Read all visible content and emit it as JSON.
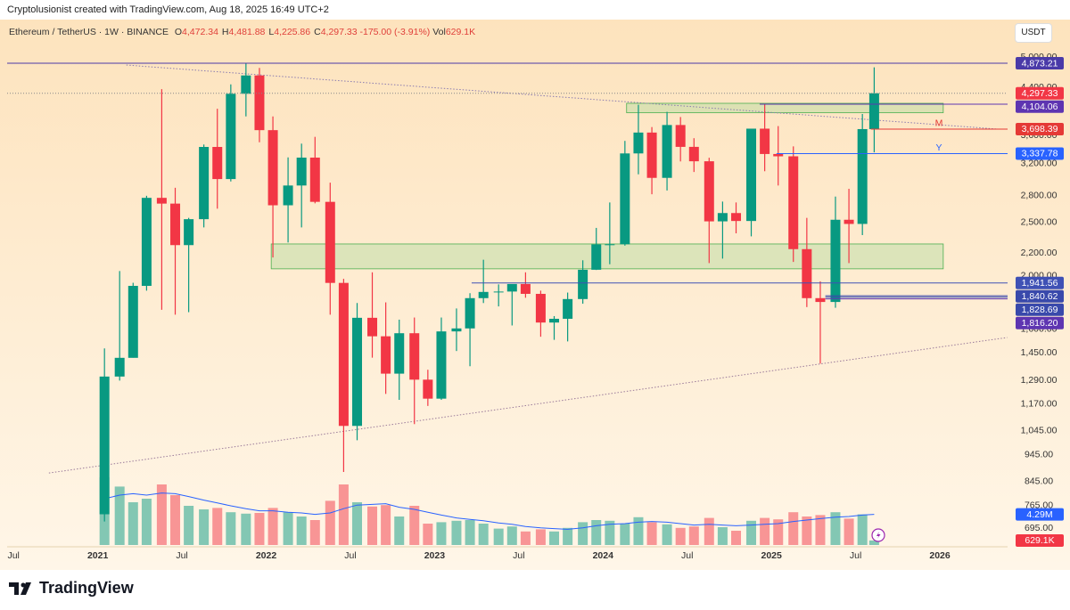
{
  "header": {
    "credit": "Cryptolusionist created with TradingView.com, Aug 18, 2025 16:49 UTC+2",
    "symbol": "Ethereum / TetherUS · 1W · BINANCE",
    "ohlc": [
      {
        "key": "O",
        "value": "4,472.34"
      },
      {
        "key": "H",
        "value": "4,481.88"
      },
      {
        "key": "L",
        "value": "4,225.86"
      },
      {
        "key": "C",
        "value": "4,297.33"
      }
    ],
    "change": "-175.00 (-3.91%)",
    "vol_key": "Vol",
    "vol_value": "629.1K",
    "currency": "USDT"
  },
  "chart_data": {
    "type": "candlestick",
    "log_scale": true,
    "grid": false,
    "up_color": "#089981",
    "down_color": "#f23645",
    "x": [
      2021.04,
      2021.13,
      2021.21,
      2021.29,
      2021.38,
      2021.46,
      2021.54,
      2021.63,
      2021.71,
      2021.79,
      2021.88,
      2021.96,
      2022.04,
      2022.13,
      2022.21,
      2022.29,
      2022.38,
      2022.46,
      2022.54,
      2022.63,
      2022.71,
      2022.79,
      2022.88,
      2022.96,
      2023.04,
      2023.13,
      2023.21,
      2023.29,
      2023.38,
      2023.46,
      2023.54,
      2023.63,
      2023.71,
      2023.79,
      2023.88,
      2023.96,
      2024.04,
      2024.13,
      2024.21,
      2024.29,
      2024.38,
      2024.46,
      2024.54,
      2024.63,
      2024.71,
      2024.79,
      2024.88,
      2024.96,
      2025.04,
      2025.13,
      2025.21,
      2025.29,
      2025.38,
      2025.46,
      2025.54,
      2025.61
    ],
    "open": [
      737,
      1312,
      1419,
      1918,
      2773,
      2707,
      2275,
      2536,
      3432,
      3000,
      4288,
      4630,
      3682,
      2688,
      2920,
      3282,
      2727,
      1942,
      1067,
      1678,
      1553,
      1328,
      1573,
      1295,
      1196,
      1585,
      1605,
      1822,
      1870,
      1873,
      1933,
      1855,
      1645,
      1671,
      1815,
      2052,
      2282,
      2283,
      3340,
      3645,
      3015,
      3762,
      3433,
      3232,
      2513,
      2602,
      2517,
      3705,
      3332,
      3300,
      2237,
      1822,
      1793,
      2530,
      2486,
      3698
    ],
    "high": [
      1476,
      2041,
      1943,
      2797,
      4372,
      2892,
      2550,
      3467,
      4027,
      4460,
      4868,
      4778,
      3900,
      3285,
      3480,
      3580,
      2955,
      1975,
      1785,
      2030,
      1790,
      1665,
      1680,
      1350,
      1680,
      1745,
      1860,
      2140,
      1930,
      1930,
      2030,
      1880,
      1690,
      1865,
      2135,
      2445,
      2720,
      3520,
      4095,
      3730,
      3975,
      3890,
      3560,
      3280,
      2730,
      2720,
      3680,
      4107,
      3745,
      3440,
      2550,
      1955,
      2788,
      2880,
      3940,
      4790
    ],
    "low": [
      715,
      1290,
      1420,
      1880,
      1735,
      1700,
      1718,
      2450,
      2650,
      2970,
      3900,
      3500,
      2160,
      2300,
      2450,
      2710,
      1700,
      880,
      1005,
      1420,
      1220,
      1190,
      1075,
      1160,
      1190,
      1460,
      1370,
      1785,
      1760,
      1625,
      1825,
      1550,
      1530,
      1520,
      1780,
      2050,
      2100,
      2270,
      3060,
      2815,
      2860,
      3230,
      3090,
      2110,
      2150,
      2390,
      2360,
      3100,
      2920,
      2120,
      1755,
      1385,
      1750,
      2110,
      2373,
      3355
    ],
    "close": [
      1312,
      1419,
      1918,
      2773,
      2707,
      2275,
      2536,
      3432,
      3000,
      4288,
      4630,
      3682,
      2688,
      2920,
      3282,
      2727,
      1942,
      1067,
      1678,
      1553,
      1328,
      1573,
      1295,
      1196,
      1585,
      1605,
      1822,
      1870,
      1873,
      1933,
      1855,
      1645,
      1671,
      1815,
      2052,
      2282,
      2283,
      3340,
      3645,
      3015,
      3762,
      3433,
      3232,
      2513,
      2602,
      2517,
      3705,
      3332,
      3300,
      2237,
      1822,
      1793,
      2530,
      2486,
      3698,
      4297
    ],
    "volume": {
      "ylim": [
        0,
        14000000
      ],
      "ma_color": "#2962ff",
      "values": [
        9500000,
        8200000,
        6000000,
        6500000,
        8500000,
        7000000,
        5500000,
        5000000,
        5200000,
        4600000,
        4400000,
        4500000,
        5200000,
        4600000,
        4000000,
        3500000,
        6200000,
        8500000,
        6000000,
        5400000,
        5600000,
        4000000,
        5500000,
        3000000,
        3200000,
        3400000,
        3500000,
        3000000,
        2300000,
        2600000,
        1900000,
        2200000,
        1900000,
        2400000,
        3200000,
        3500000,
        3400000,
        3000000,
        3900000,
        3200000,
        2900000,
        2400000,
        2600000,
        3800000,
        2500000,
        2000000,
        3400000,
        3800000,
        3600000,
        4600000,
        4000000,
        4200000,
        4600000,
        3700000,
        4300000,
        629100
      ],
      "value_labels": [
        null,
        null,
        null,
        null,
        null,
        null,
        null,
        null,
        null,
        null,
        null,
        null,
        null,
        null,
        null,
        null,
        null,
        null,
        null,
        null,
        null,
        null,
        null,
        null,
        null,
        null,
        null,
        null,
        null,
        null,
        null,
        null,
        null,
        null,
        null,
        null,
        null,
        null,
        null,
        null,
        null,
        null,
        null,
        null,
        null,
        null,
        null,
        null,
        null,
        null,
        null,
        null,
        null,
        null,
        null,
        "629.1K"
      ],
      "ma": [
        6500000,
        7000000,
        7200000,
        7000000,
        7300000,
        7200000,
        6800000,
        6300000,
        5900000,
        5500000,
        5100000,
        4800000,
        4800000,
        4600000,
        4500000,
        4300000,
        4500000,
        5100000,
        5600000,
        5700000,
        5800000,
        5300000,
        5000000,
        4600000,
        4200000,
        3800000,
        3600000,
        3400000,
        3100000,
        2900000,
        2600000,
        2400000,
        2300000,
        2200000,
        2400000,
        2700000,
        2900000,
        3000000,
        3200000,
        3300000,
        3200000,
        3000000,
        2800000,
        2900000,
        2800000,
        2700000,
        2800000,
        2900000,
        3000000,
        3300000,
        3500000,
        3700000,
        3900000,
        4000000,
        4200000,
        4290000
      ],
      "ma_labels": [
        null,
        null,
        null,
        null,
        null,
        null,
        null,
        null,
        null,
        null,
        null,
        null,
        null,
        null,
        null,
        null,
        null,
        null,
        null,
        null,
        null,
        null,
        null,
        null,
        null,
        null,
        null,
        null,
        null,
        null,
        null,
        null,
        null,
        null,
        null,
        null,
        null,
        null,
        null,
        null,
        null,
        null,
        null,
        null,
        null,
        null,
        null,
        null,
        null,
        null,
        null,
        null,
        null,
        null,
        null,
        "4.29M"
      ]
    },
    "xlim": [
      2020.462,
      2026.402
    ],
    "ylim": [
      648,
      5850
    ],
    "xticks": [
      {
        "value": 2020.5,
        "label": "Jul"
      },
      2021,
      {
        "value": 2021.5,
        "label": "Jul"
      },
      2022,
      {
        "value": 2022.5,
        "label": "Jul"
      },
      2023,
      {
        "value": 2023.5,
        "label": "Jul"
      },
      2024,
      {
        "value": 2024.5,
        "label": "Jul"
      },
      2025,
      {
        "value": 2025.5,
        "label": "Jul"
      },
      2026
    ],
    "yticks": [
      {
        "value": 5000,
        "label": "5,000.00"
      },
      {
        "value": 4400,
        "label": "4,400.00"
      },
      {
        "value": 3600,
        "label": "3,600.00"
      },
      {
        "value": 3200,
        "label": "3,200.00"
      },
      {
        "value": 2800,
        "label": "2,800.00"
      },
      {
        "value": 2500,
        "label": "2,500.00"
      },
      {
        "value": 2200,
        "label": "2,200.00"
      },
      {
        "value": 2000,
        "label": "2,000.00"
      },
      {
        "value": 1600,
        "label": "1,600.00"
      },
      {
        "value": 1450,
        "label": "1,450.00"
      },
      {
        "value": 1290,
        "label": "1,290.00"
      },
      {
        "value": 1170,
        "label": "1,170.00"
      },
      {
        "value": 1045,
        "label": "1,045.00"
      },
      {
        "value": 945,
        "label": "945.00"
      },
      {
        "value": 845,
        "label": "845.00"
      },
      {
        "value": 765,
        "label": "765.00"
      },
      {
        "value": 695,
        "label": "695.00"
      }
    ],
    "price_lines": [
      {
        "value": 4873.21,
        "label": "4,873.21",
        "color": "#4a3aa8",
        "from": 2020.462
      },
      {
        "value": 4297.33,
        "label": "4,297.33",
        "color": "#f23645",
        "from": 2020.462,
        "dashed": true
      },
      {
        "value": 4104.06,
        "label": "4,104.06",
        "color": "#5e35b1",
        "from": 2024.93
      },
      {
        "value": 3698.39,
        "label": "3,698.39",
        "color": "#e53935",
        "from": 2025.59,
        "tag": "M"
      },
      {
        "value": 3337.78,
        "label": "3,337.78",
        "color": "#2962ff",
        "from": 2025.03,
        "tag": "Y"
      },
      {
        "value": 1941.56,
        "label": "1,941.56",
        "color": "#3f51b5",
        "from": 2023.22
      },
      {
        "value": 1840.62,
        "label": "1,840.62",
        "color": "#3949ab",
        "from": 2025.32
      },
      {
        "value": 1828.69,
        "label": "1,828.69",
        "color": "#3949ab",
        "from": 2025.32
      },
      {
        "value": 1816.2,
        "label": "1,816.20",
        "color": "#5e35b1",
        "from": 2025.32
      }
    ],
    "zones": [
      {
        "low": 2060,
        "high": 2286,
        "from": 2022.03,
        "to": 2026.02
      },
      {
        "low": 3960,
        "high": 4120,
        "from": 2024.14,
        "to": 2026.02
      }
    ],
    "trendlines": [
      {
        "x": [
          2021.17,
          2026.35
        ],
        "y": [
          4836,
          3697
        ],
        "color": "#8a7bb0"
      },
      {
        "x": [
          2020.71,
          2026.4
        ],
        "y": [
          876,
          1545
        ],
        "color": "#9a7a9a"
      }
    ]
  },
  "footer": {
    "brand": "TradingView"
  }
}
